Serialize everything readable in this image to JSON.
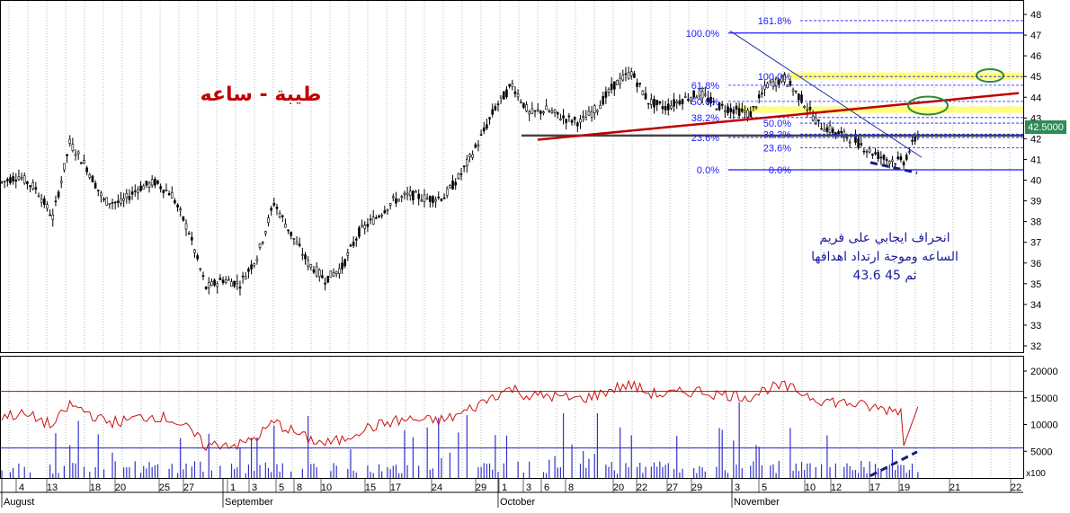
{
  "chart_data": [
    {
      "type": "candlestick",
      "title": "طيبة - ساعه",
      "y_ticks": [
        48,
        47,
        46,
        45,
        44,
        43,
        42,
        41,
        40,
        39,
        38,
        37,
        36,
        35,
        34,
        33,
        32
      ],
      "ylim": [
        31.5,
        48.4
      ],
      "last_price": "42.5000",
      "grid": "vertical dotted",
      "close_series": [
        39.9,
        40.2,
        39.6,
        38.2,
        41.8,
        40.6,
        39.0,
        38.9,
        39.6,
        39.9,
        39.3,
        37.5,
        34.8,
        35.2,
        35.0,
        36.3,
        38.9,
        37.4,
        36.0,
        35.2,
        35.8,
        37.5,
        38.2,
        39.0,
        39.3,
        39.1,
        39.2,
        40.3,
        41.8,
        43.5,
        44.6,
        43.2,
        43.4,
        43.0,
        42.8,
        43.5,
        44.6,
        45.2,
        43.8,
        43.5,
        43.9,
        44.2,
        43.6,
        43.4,
        43.2,
        44.6,
        44.9,
        43.9,
        42.7,
        42.3,
        42.0,
        41.4,
        41.0,
        40.9,
        42.5
      ],
      "fibonacci_left": {
        "labels": [
          "100.0%",
          "61.8%",
          "50.0%",
          "38.2%",
          "23.6%",
          "0.0%"
        ],
        "high": 47.1,
        "low": 40.5
      },
      "fibonacci_right": {
        "labels": [
          "161.8%",
          "100.0%",
          "50.0%",
          "38.2%",
          "23.6%",
          "0.0%"
        ],
        "high": 45.0,
        "low": 40.5,
        "extension": 47.7
      },
      "annotation": [
        "انحراف ايجابي على فريم",
        "الساعه وموجة ارتداد اهدافها",
        "43.6 ثم 45"
      ]
    },
    {
      "type": "bar+line",
      "name": "volume",
      "y_ticks": [
        20000,
        15000,
        10000,
        5000
      ],
      "ylim": [
        0,
        21000
      ],
      "scale_label": "x100",
      "reference_levels": [
        16200,
        5600
      ]
    }
  ],
  "x_axis": {
    "months": [
      "August",
      "September",
      "October",
      "November"
    ],
    "days": [
      "4",
      "13",
      "18",
      "20",
      "25",
      "27",
      "1",
      "3",
      "5",
      "8",
      "10",
      "15",
      "17",
      "24",
      "29",
      "1",
      "3",
      "6",
      "8",
      "20",
      "22",
      "27",
      "29",
      "3",
      "5",
      "10",
      "12",
      "17",
      "19",
      "21",
      "22"
    ]
  },
  "colors": {
    "candles": "#000000",
    "fib": "#1a1aff",
    "trend": "#c00000",
    "support": "#444444",
    "divergence": "#1a1a80",
    "target": "#2e8b2e",
    "zone": "#ffff7a"
  }
}
